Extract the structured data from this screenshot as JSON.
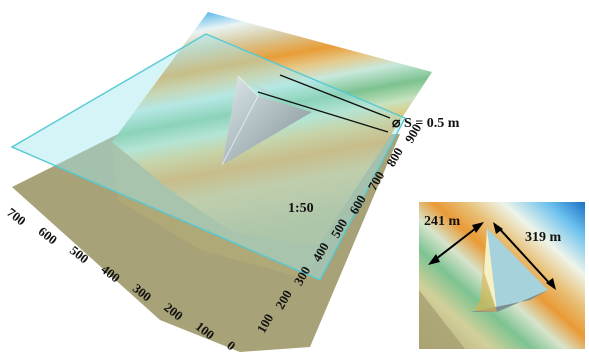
{
  "main_figure": {
    "slope_label": "S = 0.5 m",
    "slope_symbol": "⌀",
    "scale_label": "1:50",
    "left_axis_ticks": [
      "700",
      "600",
      "500",
      "400",
      "300",
      "200",
      "100",
      "0"
    ],
    "right_axis_ticks": [
      "100",
      "200",
      "300",
      "400",
      "500",
      "600",
      "700",
      "800",
      "900"
    ],
    "colors": {
      "base": "#a7a277",
      "water_plane": "#9fe6ee",
      "water_edge": "#56c9d3",
      "gradient_top": "#1a72c9",
      "gradient_mid_orange": "#e49b3c",
      "gradient_green": "#7cc28e"
    }
  },
  "inset": {
    "width_label": "241 m",
    "length_label": "319 m"
  }
}
